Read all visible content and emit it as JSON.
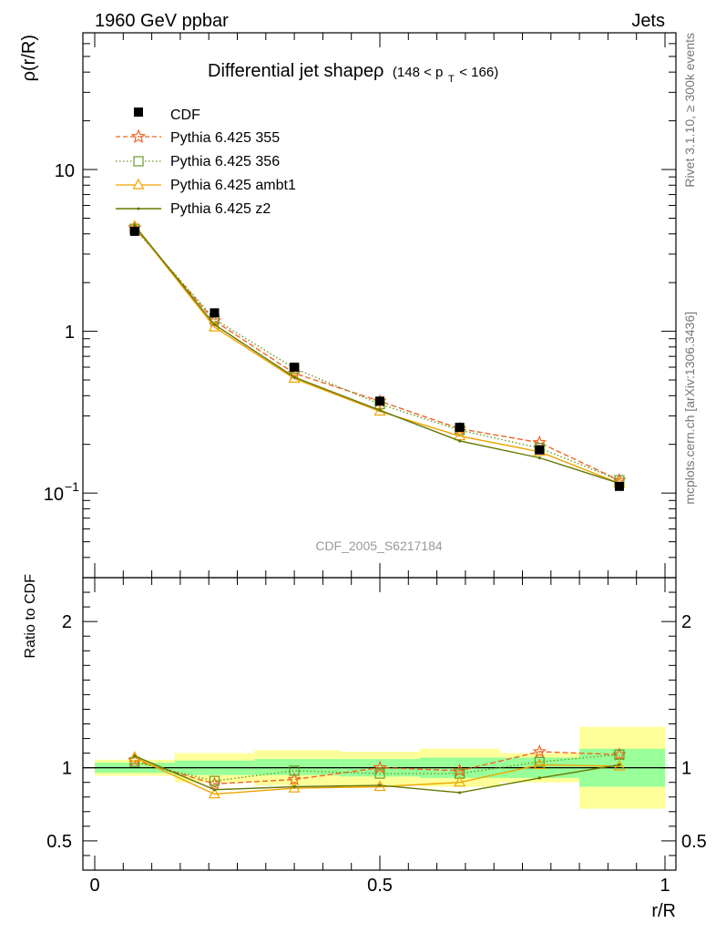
{
  "header": {
    "left": "1960 GeV ppbar",
    "right": "Jets"
  },
  "side_labels": {
    "rivet": "Rivet 3.1.10, ≥ 300k events",
    "source": "mcplots.cern.ch [arXiv:1306.3436]"
  },
  "analysis_id": "CDF_2005_S6217184",
  "colors": {
    "cdf": "#000000",
    "p355": "#ee6622",
    "p356": "#669922",
    "ambt1": "#eea300",
    "z2": "#667700",
    "band_inner": "#99ff99",
    "band_outer": "#ffff99"
  },
  "chart_data": [
    {
      "type": "line",
      "title": "Differential jet shapeρ",
      "title_sub": "(148 < p",
      "title_sub_index": "T",
      "title_sub_end": " < 166)",
      "ylabel": "ρ(r/R)",
      "xlabel": "r/R",
      "yscale": "log",
      "xlim": [
        -0.02,
        1.02
      ],
      "ylim": [
        0.03,
        70
      ],
      "ytick_labels": [
        "10",
        "1",
        "10"
      ],
      "ytick_exponent": "−1",
      "x": [
        0.07,
        0.21,
        0.35,
        0.5,
        0.64,
        0.78,
        0.92
      ],
      "legend": {
        "position": "top-left",
        "entries": [
          "CDF",
          "Pythia 6.425 355",
          "Pythia 6.425 356",
          "Pythia 6.425 ambt1",
          "Pythia 6.425 z2"
        ]
      },
      "series": [
        {
          "name": "CDF",
          "values": [
            4.15,
            1.3,
            0.6,
            0.37,
            0.255,
            0.185,
            0.11
          ]
        },
        {
          "name": "Pythia 6.425 355",
          "values": [
            4.35,
            1.16,
            0.55,
            0.37,
            0.25,
            0.205,
            0.12
          ]
        },
        {
          "name": "Pythia 6.425 356",
          "values": [
            4.3,
            1.19,
            0.59,
            0.355,
            0.245,
            0.19,
            0.12
          ]
        },
        {
          "name": "Pythia 6.425 ambt1",
          "values": [
            4.45,
            1.06,
            0.51,
            0.32,
            0.225,
            0.18,
            0.115
          ]
        },
        {
          "name": "Pythia 6.425 z2",
          "values": [
            4.5,
            1.1,
            0.52,
            0.325,
            0.21,
            0.165,
            0.115
          ]
        }
      ]
    },
    {
      "type": "line",
      "ylabel": "Ratio to CDF",
      "xlabel": "r/R",
      "xlim": [
        -0.02,
        1.02
      ],
      "ylim": [
        0.3,
        2.3
      ],
      "yticks": [
        0.5,
        1,
        2
      ],
      "ytick_labels": [
        "0.5",
        "1",
        "2"
      ],
      "xticks": [
        0,
        0.5,
        1
      ],
      "xtick_labels": [
        "0",
        "0.5",
        "1"
      ],
      "x": [
        0.07,
        0.21,
        0.35,
        0.5,
        0.64,
        0.78,
        0.92
      ],
      "bands": [
        {
          "x0": 0.0,
          "x1": 0.14,
          "inner": [
            0.965,
            1.035
          ],
          "outer": [
            0.945,
            1.055
          ]
        },
        {
          "x0": 0.14,
          "x1": 0.28,
          "inner": [
            0.95,
            1.05
          ],
          "outer": [
            0.9,
            1.1
          ]
        },
        {
          "x0": 0.28,
          "x1": 0.43,
          "inner": [
            0.95,
            1.06
          ],
          "outer": [
            0.88,
            1.12
          ]
        },
        {
          "x0": 0.43,
          "x1": 0.57,
          "inner": [
            0.94,
            1.06
          ],
          "outer": [
            0.88,
            1.11
          ]
        },
        {
          "x0": 0.57,
          "x1": 0.71,
          "inner": [
            0.93,
            1.07
          ],
          "outer": [
            0.87,
            1.13
          ]
        },
        {
          "x0": 0.71,
          "x1": 0.85,
          "inner": [
            0.93,
            1.07
          ],
          "outer": [
            0.9,
            1.1
          ]
        },
        {
          "x0": 0.85,
          "x1": 1.0,
          "inner": [
            0.87,
            1.13
          ],
          "outer": [
            0.72,
            1.28
          ]
        }
      ],
      "series": [
        {
          "name": "Pythia 6.425 355",
          "values": [
            1.05,
            0.89,
            0.92,
            1.0,
            0.98,
            1.11,
            1.09
          ]
        },
        {
          "name": "Pythia 6.425 356",
          "values": [
            1.04,
            0.91,
            0.98,
            0.96,
            0.96,
            1.04,
            1.09
          ]
        },
        {
          "name": "Pythia 6.425 ambt1",
          "values": [
            1.07,
            0.82,
            0.86,
            0.87,
            0.9,
            1.02,
            1.01
          ]
        },
        {
          "name": "Pythia 6.425 z2",
          "values": [
            1.08,
            0.85,
            0.87,
            0.88,
            0.83,
            0.93,
            1.02
          ]
        }
      ]
    }
  ]
}
